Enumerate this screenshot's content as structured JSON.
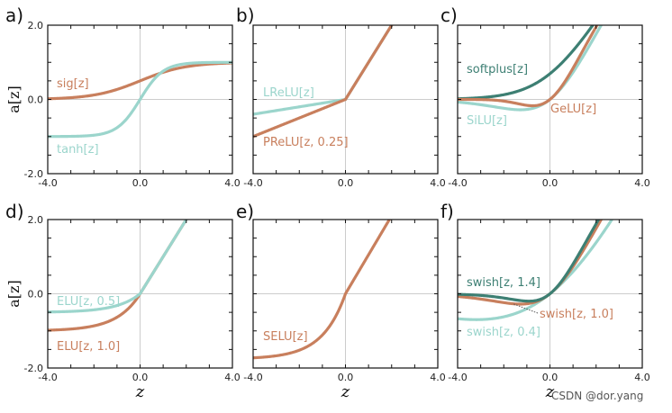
{
  "watermark": "CSDN @dor.yang",
  "colors": {
    "orange": "#c87f5d",
    "teal": "#9bd5cc",
    "dark_teal": "#3d7f73",
    "grid": "#cccccc",
    "frame": "#111111"
  },
  "chart_data": [
    {
      "type": "line",
      "panel": "a)",
      "xlim": [
        -4,
        4
      ],
      "ylim": [
        -2,
        2
      ],
      "xticks": [
        "-4.0",
        "0.0",
        "4.0"
      ],
      "yticks": [
        "-2.0",
        "0.0",
        "2.0"
      ],
      "xlabel": "",
      "ylabel": "a[z]",
      "series": [
        {
          "name": "sig[z]",
          "fn": "sigmoid",
          "color": "orange"
        },
        {
          "name": "tanh[z]",
          "fn": "tanh",
          "color": "teal"
        }
      ]
    },
    {
      "type": "line",
      "panel": "b)",
      "xlim": [
        -4,
        4
      ],
      "ylim": [
        -2,
        2
      ],
      "xticks": [
        "-4.0",
        "0.0",
        "4.0"
      ],
      "yticks": [],
      "xlabel": "",
      "ylabel": "",
      "series": [
        {
          "name": "LReLU[z]",
          "fn": "leaky_relu",
          "slope": 0.1,
          "color": "teal"
        },
        {
          "name": "PReLU[z, 0.25]",
          "fn": "leaky_relu",
          "slope": 0.25,
          "color": "orange"
        }
      ]
    },
    {
      "type": "line",
      "panel": "c)",
      "xlim": [
        -4,
        4
      ],
      "ylim": [
        -2,
        2
      ],
      "xticks": [
        "-4.0",
        "0.0",
        "4.0"
      ],
      "yticks": [],
      "xlabel": "",
      "ylabel": "",
      "series": [
        {
          "name": "softplus[z]",
          "fn": "softplus",
          "color": "dark_teal"
        },
        {
          "name": "SiLU[z]",
          "fn": "silu",
          "color": "teal"
        },
        {
          "name": "GeLU[z]",
          "fn": "gelu",
          "color": "orange"
        }
      ]
    },
    {
      "type": "line",
      "panel": "d)",
      "xlim": [
        -4,
        4
      ],
      "ylim": [
        -2,
        2
      ],
      "xticks": [
        "-4.0",
        "0.0",
        "4.0"
      ],
      "yticks": [
        "-2.0",
        "0.0",
        "2.0"
      ],
      "xlabel": "z",
      "ylabel": "a[z]",
      "series": [
        {
          "name": "ELU[z, 1.0]",
          "fn": "elu",
          "alpha": 1.0,
          "color": "orange"
        },
        {
          "name": "ELU[z, 0.5]",
          "fn": "elu",
          "alpha": 0.5,
          "color": "teal"
        }
      ]
    },
    {
      "type": "line",
      "panel": "e)",
      "xlim": [
        -4,
        4
      ],
      "ylim": [
        -2,
        2
      ],
      "xticks": [
        "-4.0",
        "0.0",
        "4.0"
      ],
      "yticks": [],
      "xlabel": "z",
      "ylabel": "",
      "series": [
        {
          "name": "SELU[z]",
          "fn": "selu",
          "color": "orange"
        }
      ]
    },
    {
      "type": "line",
      "panel": "f)",
      "xlim": [
        -4,
        4
      ],
      "ylim": [
        -2,
        2
      ],
      "xticks": [
        "-4.0",
        "0.0",
        "4.0"
      ],
      "yticks": [],
      "xlabel": "z",
      "ylabel": "",
      "series": [
        {
          "name": "swish[z, 0.4]",
          "fn": "swish",
          "beta": 0.4,
          "color": "teal"
        },
        {
          "name": "swish[z, 1.0]",
          "fn": "swish",
          "beta": 1.0,
          "color": "orange"
        },
        {
          "name": "swish[z, 1.4]",
          "fn": "swish",
          "beta": 1.4,
          "color": "dark_teal"
        }
      ]
    }
  ]
}
